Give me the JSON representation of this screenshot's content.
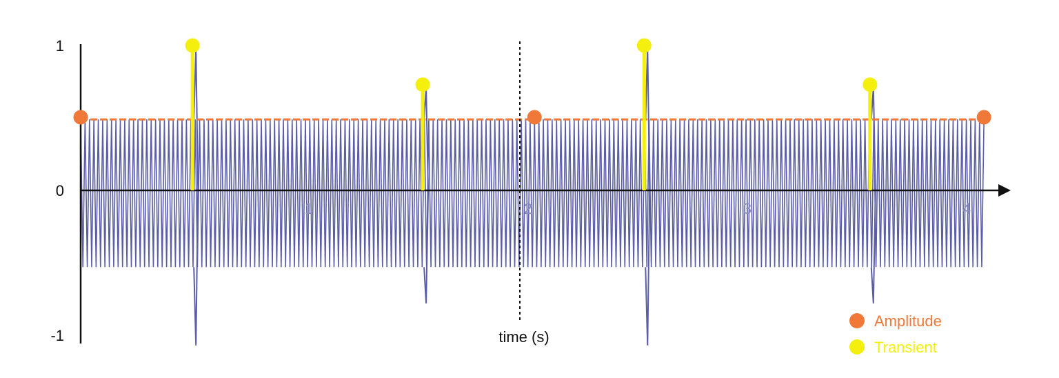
{
  "chart_data": {
    "type": "line",
    "xlabel": "time (s)",
    "ylabel": "",
    "xlim": [
      0,
      4.3
    ],
    "ylim": [
      -1,
      1
    ],
    "x_ticks": [
      {
        "value": 1,
        "label": "1"
      },
      {
        "value": 2,
        "label": "2"
      },
      {
        "value": 3,
        "label": "3"
      },
      {
        "value": 4,
        "label": "4"
      }
    ],
    "y_ticks": [
      {
        "value": 1,
        "label": "1"
      },
      {
        "value": 0,
        "label": "0"
      },
      {
        "value": -1,
        "label": "-1"
      }
    ],
    "grid": false,
    "marker_line_x": 2,
    "series": [
      {
        "kind": "oscillation",
        "x_start": 0,
        "x_end": 4.12,
        "amplitude_pos": 0.49,
        "amplitude_neg": -0.53,
        "cycles": 205,
        "color": "#5b5ea6"
      },
      {
        "name": "Amplitude",
        "kind": "envelope",
        "color": "#f07838",
        "level": 0.49,
        "points": [
          {
            "x": 0,
            "y": 0.5
          },
          {
            "x": 2.07,
            "y": 0.5
          },
          {
            "x": 4.12,
            "y": 0.5
          }
        ]
      },
      {
        "name": "Transient",
        "kind": "stems",
        "color": "#f4ef0c",
        "points": [
          {
            "x": 0.51,
            "y": 1.0,
            "spike_low": -1.07
          },
          {
            "x": 1.56,
            "y": 0.73,
            "spike_low": -0.78
          },
          {
            "x": 2.57,
            "y": 1.0,
            "spike_low": -1.07
          },
          {
            "x": 3.6,
            "y": 0.73,
            "spike_low": -0.78
          }
        ]
      }
    ]
  },
  "legend": {
    "position": "bottom-right",
    "items": [
      {
        "label": "Amplitude",
        "color": "#f07838"
      },
      {
        "label": "Transient",
        "color": "#f4ef0c"
      }
    ]
  },
  "colors": {
    "axis": "#111111",
    "legend_amplitude_text": "#f07838",
    "legend_transient_text": "#f4ef0c",
    "signal": "#5b5ea6"
  }
}
